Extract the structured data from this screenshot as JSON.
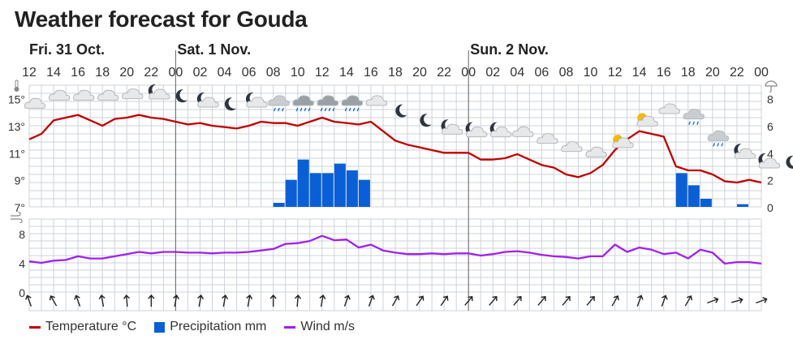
{
  "title": "Weather forecast for Gouda",
  "days": [
    {
      "label": "Fri. 31 Oct.",
      "start_index": 0
    },
    {
      "label": "Sat. 1 Nov.",
      "start_index": 6
    },
    {
      "label": "Sun. 2 Nov.",
      "start_index": 18
    }
  ],
  "hour_labels": [
    "12",
    "14",
    "16",
    "18",
    "20",
    "22",
    "00",
    "02",
    "04",
    "06",
    "08",
    "10",
    "12",
    "14",
    "16",
    "18",
    "20",
    "22",
    "00",
    "02",
    "04",
    "06",
    "08",
    "10",
    "12",
    "14",
    "16",
    "18",
    "20",
    "22",
    "00"
  ],
  "temp_tick_labels": [
    "15°",
    "13°",
    "11°",
    "9°",
    "7°"
  ],
  "precip_tick_labels": [
    "8",
    "6",
    "4",
    "2",
    "0"
  ],
  "wind_tick_labels": [
    "8",
    "4",
    "0"
  ],
  "colors": {
    "temperature": "#c00000",
    "precipitation": "#0a5fd6",
    "wind": "#a020f0",
    "grid": "#ccd3da",
    "day_line": "#666666"
  },
  "icons": [
    {
      "hour": 12.5,
      "kind": "cloud",
      "y": 14.6
    },
    {
      "hour": 14.5,
      "kind": "cloud",
      "y": 15.2
    },
    {
      "hour": 16.5,
      "kind": "cloud",
      "y": 15.2
    },
    {
      "hour": 18.5,
      "kind": "cloud",
      "y": 15.2
    },
    {
      "hour": 20.5,
      "kind": "cloud",
      "y": 15.3
    },
    {
      "hour": 22.5,
      "kind": "moon-cloud",
      "y": 15.4
    },
    {
      "hour": 24.5,
      "kind": "moon",
      "y": 15.2
    },
    {
      "hour": 26.5,
      "kind": "moon-cloud",
      "y": 14.8
    },
    {
      "hour": 28.5,
      "kind": "moon",
      "y": 14.6
    },
    {
      "hour": 30.5,
      "kind": "moon-cloud",
      "y": 14.8
    },
    {
      "hour": 32.5,
      "kind": "rain-cloud",
      "y": 14.8
    },
    {
      "hour": 34.5,
      "kind": "heavy-rain-cloud",
      "y": 14.8
    },
    {
      "hour": 36.5,
      "kind": "heavy-rain-cloud",
      "y": 14.8
    },
    {
      "hour": 38.5,
      "kind": "heavy-rain-cloud",
      "y": 14.8
    },
    {
      "hour": 40.5,
      "kind": "cloud",
      "y": 14.8
    },
    {
      "hour": 42.5,
      "kind": "moon",
      "y": 14.1
    },
    {
      "hour": 44.5,
      "kind": "moon",
      "y": 13.4
    },
    {
      "hour": 46.5,
      "kind": "moon-cloud",
      "y": 12.8
    },
    {
      "hour": 48.5,
      "kind": "moon-cloud",
      "y": 12.6
    },
    {
      "hour": 50.5,
      "kind": "moon-cloud",
      "y": 12.6
    },
    {
      "hour": 52.5,
      "kind": "cloud",
      "y": 12.5
    },
    {
      "hour": 54.5,
      "kind": "cloud",
      "y": 12.0
    },
    {
      "hour": 56.5,
      "kind": "cloud",
      "y": 11.4
    },
    {
      "hour": 58.5,
      "kind": "cloud",
      "y": 11.0
    },
    {
      "hour": 60.5,
      "kind": "sun-cloud",
      "y": 11.8
    },
    {
      "hour": 62.5,
      "kind": "sun-cloud",
      "y": 13.4
    },
    {
      "hour": 64.5,
      "kind": "cloud",
      "y": 14.2
    },
    {
      "hour": 66.5,
      "kind": "rain-cloud",
      "y": 13.8
    },
    {
      "hour": 68.5,
      "kind": "rain-cloud",
      "y": 12.2
    },
    {
      "hour": 70.5,
      "kind": "moon-cloud",
      "y": 11.0
    },
    {
      "hour": 72.5,
      "kind": "moon-cloud",
      "y": 10.3
    },
    {
      "hour": 74.5,
      "kind": "moon",
      "y": 10.3
    }
  ],
  "wind_directions_deg": [
    340,
    330,
    340,
    350,
    355,
    0,
    10,
    10,
    10,
    10,
    0,
    5,
    10,
    20,
    20,
    30,
    35,
    35,
    40,
    40,
    40,
    40,
    40,
    40,
    30,
    20,
    20,
    30,
    70,
    75,
    70
  ],
  "legend": {
    "temperature": "Temperature °C",
    "precipitation": "Precipitation mm",
    "wind": "Wind m/s"
  },
  "chart_data": [
    {
      "type": "line",
      "x_unit": "hours since Fri 31 Oct 00:00",
      "x": [
        12,
        13,
        14,
        15,
        16,
        17,
        18,
        19,
        20,
        21,
        22,
        23,
        24,
        25,
        26,
        27,
        28,
        29,
        30,
        31,
        32,
        33,
        34,
        35,
        36,
        37,
        38,
        39,
        40,
        41,
        42,
        43,
        44,
        45,
        46,
        47,
        48,
        49,
        50,
        51,
        52,
        53,
        54,
        55,
        56,
        57,
        58,
        59,
        60,
        61,
        62,
        63,
        64,
        65,
        66,
        67,
        68,
        69,
        70,
        71,
        72
      ],
      "series": [
        {
          "name": "Temperature °C",
          "axis": "left",
          "values": [
            12.0,
            12.4,
            13.4,
            13.6,
            13.8,
            13.4,
            13.0,
            13.5,
            13.6,
            13.8,
            13.6,
            13.5,
            13.3,
            13.1,
            13.2,
            13.0,
            12.9,
            12.8,
            13.0,
            13.3,
            13.2,
            13.2,
            13.0,
            13.3,
            13.6,
            13.3,
            13.2,
            13.1,
            13.3,
            12.6,
            11.9,
            11.6,
            11.4,
            11.2,
            11.0,
            11.0,
            11.0,
            10.5,
            10.5,
            10.6,
            10.9,
            10.5,
            10.1,
            9.9,
            9.4,
            9.2,
            9.5,
            10.1,
            11.2,
            12.0,
            12.6,
            12.4,
            12.2,
            10.0,
            9.7,
            9.7,
            9.4,
            8.9,
            8.8,
            9.0,
            8.8
          ]
        },
        {
          "name": "Precipitation mm",
          "axis": "right",
          "kind": "bar",
          "values": [
            0,
            0,
            0,
            0,
            0,
            0,
            0,
            0,
            0,
            0,
            0,
            0,
            0,
            0,
            0,
            0,
            0,
            0,
            0,
            0,
            0.3,
            2.0,
            3.5,
            2.5,
            2.5,
            3.2,
            2.7,
            2.0,
            0,
            0,
            0,
            0,
            0,
            0,
            0,
            0,
            0,
            0,
            0,
            0,
            0,
            0,
            0,
            0,
            0,
            0,
            0,
            0,
            0,
            0,
            0,
            0,
            0,
            2.5,
            1.6,
            0.6,
            0,
            0,
            0.2,
            0,
            0
          ]
        }
      ],
      "ylim": [
        7,
        16
      ],
      "y_ticks": [
        7,
        9,
        11,
        13,
        15
      ],
      "y2lim": [
        0,
        9
      ],
      "y2_ticks": [
        0,
        2,
        4,
        6,
        8
      ],
      "grid": true,
      "legend_position": "bottom"
    },
    {
      "type": "line",
      "x_unit": "hours since Fri 31 Oct 00:00",
      "x": [
        12,
        13,
        14,
        15,
        16,
        17,
        18,
        19,
        20,
        21,
        22,
        23,
        24,
        25,
        26,
        27,
        28,
        29,
        30,
        31,
        32,
        33,
        34,
        35,
        36,
        37,
        38,
        39,
        40,
        41,
        42,
        43,
        44,
        45,
        46,
        47,
        48,
        49,
        50,
        51,
        52,
        53,
        54,
        55,
        56,
        57,
        58,
        59,
        60,
        61,
        62,
        63,
        64,
        65,
        66,
        67,
        68,
        69,
        70,
        71,
        72
      ],
      "series": [
        {
          "name": "Wind m/s",
          "values": [
            4.2,
            4.0,
            4.3,
            4.4,
            4.9,
            4.6,
            4.6,
            4.9,
            5.2,
            5.5,
            5.3,
            5.5,
            5.5,
            5.4,
            5.4,
            5.3,
            5.4,
            5.4,
            5.5,
            5.7,
            5.9,
            6.6,
            6.7,
            7.0,
            7.7,
            7.1,
            7.2,
            6.1,
            6.5,
            5.7,
            5.4,
            5.2,
            5.2,
            5.3,
            5.2,
            5.3,
            5.3,
            5.0,
            5.2,
            5.5,
            5.6,
            5.4,
            5.1,
            4.9,
            4.8,
            4.6,
            4.9,
            4.9,
            6.5,
            5.5,
            6.1,
            5.8,
            5.2,
            5.4,
            4.6,
            5.8,
            5.4,
            3.9,
            4.1,
            4.1,
            3.9
          ]
        }
      ],
      "ylim": [
        0,
        10
      ],
      "y_ticks": [
        0,
        4,
        8
      ],
      "grid": true
    }
  ]
}
